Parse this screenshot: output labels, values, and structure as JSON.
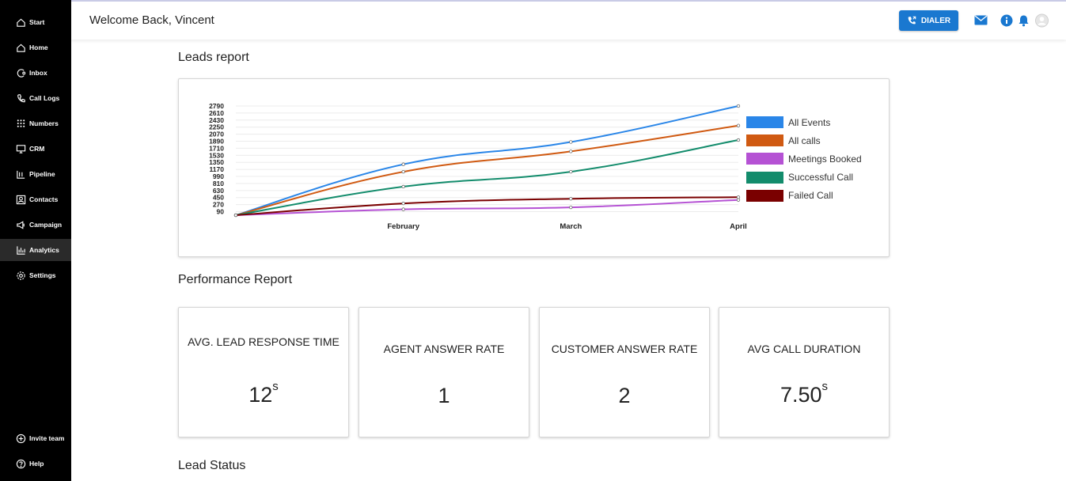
{
  "sidebar": {
    "items": [
      {
        "label": "Start",
        "icon": "home-icon"
      },
      {
        "label": "Home",
        "icon": "home-icon"
      },
      {
        "label": "Inbox",
        "icon": "inbox-icon"
      },
      {
        "label": "Call Logs",
        "icon": "phone-icon"
      },
      {
        "label": "Numbers",
        "icon": "dialpad-icon"
      },
      {
        "label": "CRM",
        "icon": "monitor-icon"
      },
      {
        "label": "Pipeline",
        "icon": "pipeline-icon"
      },
      {
        "label": "Contacts",
        "icon": "contacts-icon"
      },
      {
        "label": "Campaign",
        "icon": "megaphone-icon"
      },
      {
        "label": "Analytics",
        "icon": "chart-icon"
      },
      {
        "label": "Settings",
        "icon": "gear-icon"
      }
    ],
    "active": "Analytics",
    "bottom": [
      {
        "label": "Invite team",
        "icon": "plus-circle-icon"
      },
      {
        "label": "Help",
        "icon": "help-icon"
      }
    ]
  },
  "header": {
    "welcome": "Welcome Back, Vincent",
    "dialer_label": "DIALER"
  },
  "sections": {
    "leads_report": "Leads report",
    "performance_report": "Performance Report",
    "lead_status": "Lead Status"
  },
  "kpis": [
    {
      "label": "AVG. LEAD RESPONSE TIME",
      "value": "12",
      "unit": "s"
    },
    {
      "label": "AGENT ANSWER RATE",
      "value": "1",
      "unit": ""
    },
    {
      "label": "CUSTOMER ANSWER RATE",
      "value": "2",
      "unit": ""
    },
    {
      "label": "AVG CALL DURATION",
      "value": "7.50",
      "unit": "s"
    }
  ],
  "colors": {
    "accent": "#1a78d0",
    "sidebar_bg": "#000000"
  },
  "chart_data": {
    "type": "line",
    "title": "",
    "xlabel": "",
    "ylabel": "",
    "x": [
      "",
      "February",
      "March",
      "April"
    ],
    "yticks": [
      90,
      270,
      450,
      630,
      810,
      990,
      1170,
      1350,
      1530,
      1710,
      1890,
      2070,
      2250,
      2430,
      2610,
      2790
    ],
    "ylim": [
      0,
      2790
    ],
    "grid": true,
    "legend": "right",
    "series": [
      {
        "name": "All Events",
        "color": "#2a86e8",
        "values": [
          0,
          1300,
          1870,
          2790
        ]
      },
      {
        "name": "All calls",
        "color": "#d05a12",
        "values": [
          0,
          1110,
          1630,
          2290
        ]
      },
      {
        "name": "Meetings Booked",
        "color": "#b552d4",
        "values": [
          0,
          150,
          200,
          390
        ]
      },
      {
        "name": "Successful Call",
        "color": "#138c6c",
        "values": [
          0,
          730,
          1110,
          1920
        ]
      },
      {
        "name": "Failed Call",
        "color": "#7a0000",
        "values": [
          0,
          300,
          420,
          460
        ]
      }
    ]
  }
}
